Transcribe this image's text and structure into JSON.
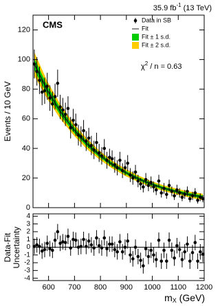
{
  "chart_data": [
    {
      "type": "scatter",
      "cms_label": "CMS",
      "lumi": [
        "35.9 fb",
        "-1",
        " (13 TeV)"
      ],
      "chi2": [
        "χ",
        "2",
        " / n = 0.63"
      ],
      "y_label": "Events / 10 GeV",
      "x": [
        545,
        555,
        565,
        575,
        585,
        595,
        605,
        615,
        625,
        635,
        645,
        655,
        665,
        675,
        685,
        695,
        705,
        715,
        725,
        735,
        745,
        755,
        765,
        775,
        785,
        795,
        805,
        815,
        825,
        835,
        845,
        855,
        865,
        875,
        885,
        895,
        905,
        915,
        925,
        935,
        945,
        955,
        965,
        975,
        985,
        995,
        1005,
        1015,
        1025,
        1035,
        1045,
        1055,
        1065,
        1075,
        1085,
        1095,
        1105,
        1115,
        1125,
        1135,
        1145,
        1155,
        1165,
        1175,
        1185,
        1195
      ],
      "fit_x": [
        545,
        595,
        645,
        695,
        745,
        795,
        845,
        895,
        945,
        995,
        1045,
        1095,
        1145,
        1195
      ],
      "series": [
        {
          "name": "Data in SB",
          "color": "#000000",
          "values": [
            97,
            92,
            86,
            78,
            79,
            82,
            74,
            70,
            75,
            84,
            68,
            66,
            63,
            67,
            54,
            59,
            56,
            49,
            48,
            52,
            45,
            47,
            42,
            39,
            44,
            37,
            35,
            40,
            32,
            34,
            33,
            29,
            27,
            32,
            25,
            27,
            30,
            22,
            20,
            24,
            18,
            16,
            14,
            19,
            15,
            17,
            14,
            12,
            18,
            10,
            13,
            9,
            15,
            11,
            8,
            12,
            10,
            7,
            9,
            11,
            6,
            8,
            10,
            5,
            7,
            6
          ],
          "errors": [
            9.8,
            9.6,
            9.3,
            8.8,
            8.9,
            9.1,
            8.6,
            8.4,
            8.7,
            9.2,
            8.2,
            8.1,
            7.9,
            8.2,
            7.3,
            7.7,
            7.5,
            7.0,
            6.9,
            7.2,
            6.7,
            6.9,
            6.5,
            6.2,
            6.6,
            6.1,
            5.9,
            6.3,
            5.7,
            5.8,
            5.7,
            5.4,
            5.2,
            5.7,
            5.0,
            5.2,
            5.5,
            4.7,
            4.5,
            4.9,
            4.2,
            4.0,
            3.7,
            4.4,
            3.9,
            4.1,
            3.7,
            3.5,
            4.2,
            3.2,
            3.6,
            3.0,
            3.9,
            3.3,
            2.8,
            3.5,
            3.2,
            2.6,
            3.0,
            3.3,
            2.4,
            2.8,
            3.2,
            2.2,
            2.6,
            2.4
          ]
        },
        {
          "name": "Fit",
          "color": "#1a1a1a",
          "values": [
            97,
            79.4,
            65.0,
            53.2,
            43.6,
            35.7,
            29.2,
            23.9,
            19.6,
            16.0,
            13.1,
            10.8,
            8.8,
            7.2
          ]
        },
        {
          "name": "Fit ± 1 s.d.",
          "color": "#00cc00",
          "lower": [
            93,
            76.4,
            62.5,
            51.2,
            41.8,
            34.2,
            27.9,
            22.7,
            18.5,
            15.0,
            12.1,
            9.8,
            7.8,
            6.1
          ],
          "upper": [
            101,
            82.4,
            67.5,
            55.2,
            45.4,
            37.2,
            30.5,
            25.1,
            20.7,
            17.0,
            14.1,
            11.8,
            9.8,
            8.3
          ]
        },
        {
          "name": "Fit ± 2 s.d.",
          "color": "#ffcc00",
          "lower": [
            89,
            73.4,
            60.0,
            49.2,
            40.0,
            32.7,
            26.6,
            21.5,
            17.4,
            14.0,
            11.1,
            8.8,
            6.8,
            5.0
          ],
          "upper": [
            105,
            85.4,
            70.0,
            57.2,
            47.2,
            38.7,
            31.8,
            26.3,
            21.8,
            18.0,
            15.1,
            12.8,
            10.8,
            9.4
          ]
        }
      ],
      "xlim": [
        540,
        1200
      ],
      "ylim": [
        0,
        130
      ],
      "xticks": [
        600,
        700,
        800,
        900,
        1000,
        1100,
        1200
      ],
      "yticks": [
        0,
        20,
        40,
        60,
        80,
        100,
        120
      ]
    },
    {
      "type": "scatter",
      "y_label": [
        "Data-Fit",
        "Uncertainty"
      ],
      "x_label": [
        "m",
        "X",
        " (GeV)"
      ],
      "values": [
        0.1,
        0.3,
        0.1,
        -0.5,
        -0.3,
        0.5,
        -0.2,
        -0.4,
        0.9,
        2.0,
        0.5,
        0.7,
        0.6,
        1.4,
        -0.1,
        1.0,
        0.9,
        0.0,
        0.1,
        1.0,
        0.1,
        0.8,
        0.3,
        -0.1,
        1.2,
        0.2,
        -0.1,
        1.2,
        -0.2,
        0.4,
        0.4,
        -0.3,
        -0.6,
        0.7,
        -0.6,
        0.0,
        0.8,
        -1.0,
        -1.5,
        0.0,
        -1.2,
        -1.7,
        -2.4,
        -0.2,
        -1.2,
        -0.4,
        -1.0,
        -1.6,
        0.9,
        -1.8,
        -0.4,
        -1.8,
        0.9,
        -0.4,
        -1.4,
        0.2,
        -0.3,
        -1.6,
        -0.6,
        0.4,
        -1.8,
        -0.7,
        0.6,
        -1.8,
        -0.6,
        -0.9
      ],
      "errors": [
        1,
        1,
        1,
        1,
        1,
        1,
        1,
        1,
        1,
        1,
        1,
        1,
        1,
        1,
        1,
        1,
        1,
        1,
        1,
        1,
        1,
        1,
        1,
        1,
        1,
        1,
        1,
        1,
        1,
        1,
        1,
        1,
        1,
        1,
        1,
        1,
        1,
        1,
        1,
        1,
        1,
        1,
        1,
        1,
        1,
        1,
        1,
        1,
        1,
        1,
        1,
        1,
        1,
        1,
        1,
        1,
        1,
        1,
        1,
        1,
        1,
        1,
        1,
        1,
        1,
        1
      ],
      "xlim": [
        540,
        1200
      ],
      "ylim": [
        -4.3,
        4.3
      ],
      "xticks": [
        600,
        700,
        800,
        900,
        1000,
        1100,
        1200
      ],
      "yticks": [
        -4,
        -3,
        -2,
        -1,
        0,
        1,
        2,
        3,
        4
      ]
    }
  ]
}
